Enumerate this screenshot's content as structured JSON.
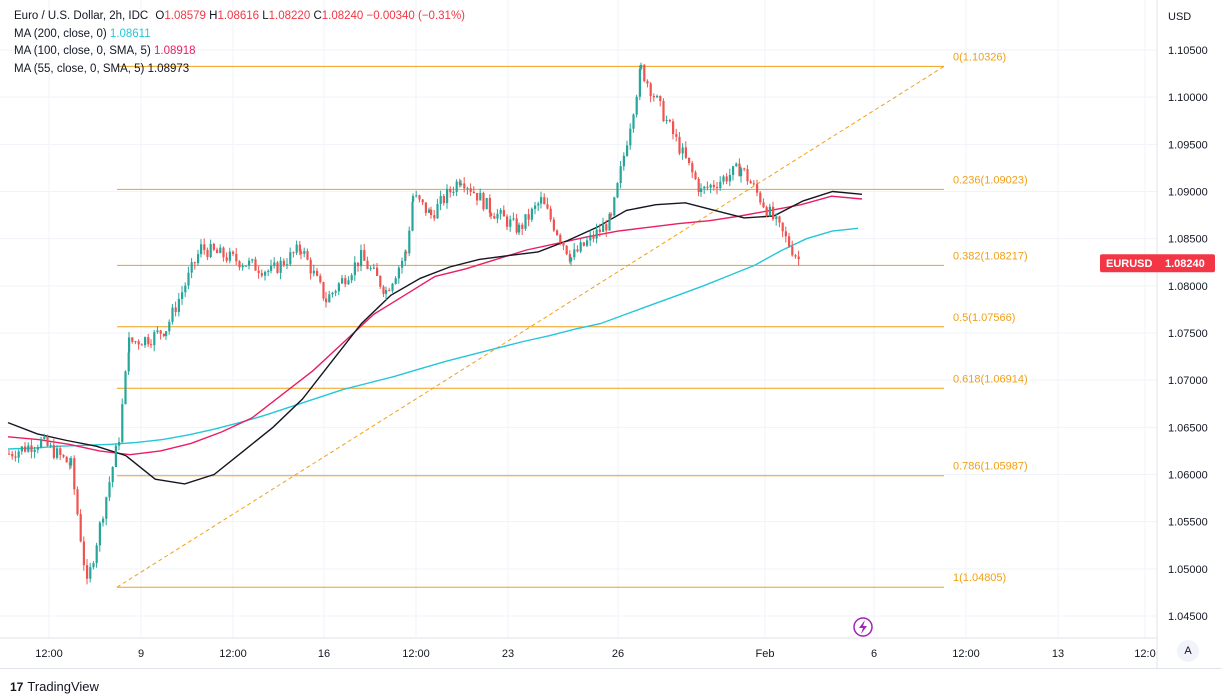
{
  "legend": {
    "symbol_line": "Euro / U.S. Dollar, 2h, IDC",
    "open_label": "O",
    "open": "1.08579",
    "high_label": "H",
    "high": "1.08616",
    "low_label": "L",
    "low": "1.08220",
    "close_label": "C",
    "close": "1.08240",
    "change": "−0.00340 (−0.31%)",
    "ma200_label": "MA (200, close, 0)",
    "ma200_value": "1.08611",
    "ma100_label": "MA (100, close, 0, SMA, 5)",
    "ma100_value": "1.08918",
    "ma55_label": "MA (55, close, 0, SMA, 5)",
    "ma55_value": "1.08973"
  },
  "price_axis": {
    "currency": "USD",
    "ticks": [
      "1.10500",
      "1.10000",
      "1.09500",
      "1.09000",
      "1.08500",
      "1.08000",
      "1.07500",
      "1.07000",
      "1.06500",
      "1.06000",
      "1.05500",
      "1.05000",
      "1.04500"
    ]
  },
  "time_axis": {
    "ticks": [
      "12:00",
      "9",
      "12:00",
      "16",
      "12:00",
      "23",
      "26",
      "Feb",
      "6",
      "12:00",
      "13",
      "12:0"
    ]
  },
  "price_tag": {
    "symbol": "EURUSD",
    "price": "1.08240"
  },
  "fib_labels": [
    "0(1.10326)",
    "0.236(1.09023)",
    "0.382(1.08217)",
    "0.5(1.07566)",
    "0.618(1.06914)",
    "0.786(1.05987)",
    "1(1.04805)"
  ],
  "footer": {
    "brand": "TradingView",
    "auto": "A"
  },
  "colors": {
    "up": "#26a69a",
    "down": "#ef5350",
    "fib": "#f0a018",
    "ma200": "#26c6da",
    "ma100": "#e91e63",
    "ma55": "#131722",
    "tag": "#f23645",
    "grid": "#f0f3fa"
  },
  "chart_data": {
    "type": "candlestick",
    "title": "Euro / U.S. Dollar, 2h, IDC",
    "ylim": [
      1.0425,
      1.1075
    ],
    "fibonacci": [
      {
        "level": 0,
        "price": 1.10326
      },
      {
        "level": 0.236,
        "price": 1.09023
      },
      {
        "level": 0.382,
        "price": 1.08217
      },
      {
        "level": 0.5,
        "price": 1.07566
      },
      {
        "level": 0.618,
        "price": 1.06914
      },
      {
        "level": 0.786,
        "price": 1.05987
      },
      {
        "level": 1,
        "price": 1.04805
      }
    ],
    "anchors": [
      {
        "name": "start",
        "price": 1.0622
      },
      {
        "name": "dip1",
        "price": 1.0635
      },
      {
        "name": "mid1",
        "price": 1.061
      },
      {
        "name": "low",
        "price": 1.0482
      },
      {
        "name": "jump",
        "price": 1.064
      },
      {
        "name": "rise",
        "price": 1.074
      },
      {
        "name": "plateau",
        "price": 1.0745
      },
      {
        "name": "plateau2",
        "price": 1.0755
      },
      {
        "name": "surge",
        "price": 1.084
      },
      {
        "name": "pull",
        "price": 1.0815
      },
      {
        "name": "r2",
        "price": 1.084
      },
      {
        "name": "dip2",
        "price": 1.0785
      },
      {
        "name": "r3",
        "price": 1.083
      },
      {
        "name": "dip3",
        "price": 1.0795
      },
      {
        "name": "r4",
        "price": 1.0835
      },
      {
        "name": "r5",
        "price": 1.0895
      },
      {
        "name": "r6",
        "price": 1.0875
      },
      {
        "name": "r7",
        "price": 1.0915
      },
      {
        "name": "r8",
        "price": 1.088
      },
      {
        "name": "r9",
        "price": 1.086
      },
      {
        "name": "r10",
        "price": 1.089
      },
      {
        "name": "dip4",
        "price": 1.083
      },
      {
        "name": "r11",
        "price": 1.087
      },
      {
        "name": "spike",
        "price": 1.103
      },
      {
        "name": "fall",
        "price": 1.09
      },
      {
        "name": "r12",
        "price": 1.0925
      },
      {
        "name": "last",
        "price": 1.0824
      }
    ],
    "ma200": [
      1.0627,
      1.0628,
      1.063,
      1.0631,
      1.0632,
      1.0634,
      1.0637,
      1.0642,
      1.0648,
      1.0655,
      1.0663,
      1.0672,
      1.0681,
      1.069,
      1.0697,
      1.0704,
      1.0712,
      1.072,
      1.0727,
      1.0734,
      1.0741,
      1.0747,
      1.0754,
      1.076,
      1.077,
      1.078,
      1.079,
      1.08,
      1.0811,
      1.0822,
      1.0837,
      1.085,
      1.0858,
      1.0861
    ],
    "ma100": [
      1.064,
      1.0637,
      1.0632,
      1.0625,
      1.0621,
      1.0625,
      1.0633,
      1.0645,
      1.066,
      1.0685,
      1.071,
      1.074,
      1.077,
      1.079,
      1.081,
      1.0818,
      1.0828,
      1.0838,
      1.0845,
      1.0852,
      1.0858,
      1.0862,
      1.0866,
      1.0869,
      1.0874,
      1.088,
      1.0886,
      1.0895,
      1.0892
    ],
    "ma55": [
      1.0655,
      1.0643,
      1.0636,
      1.063,
      1.062,
      1.0595,
      1.059,
      1.06,
      1.0625,
      1.065,
      1.068,
      1.072,
      1.076,
      1.079,
      1.0808,
      1.082,
      1.0828,
      1.0832,
      1.0836,
      1.0848,
      1.0862,
      1.088,
      1.0886,
      1.0888,
      1.088,
      1.0872,
      1.0874,
      1.089,
      1.09,
      1.0897
    ]
  }
}
